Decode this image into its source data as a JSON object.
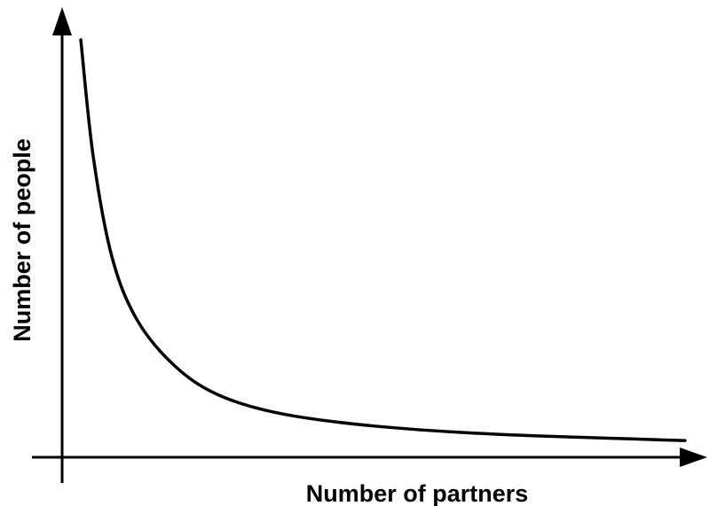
{
  "chart_data": {
    "type": "line",
    "title": "",
    "xlabel": "Number of partners",
    "ylabel": "Number of people",
    "grid": false,
    "legend": "none",
    "axis_ticks": false,
    "curve_shape": "power-law decay (long tail)",
    "series": [
      {
        "values": [
          [
            0.03,
            1.0
          ],
          [
            0.05,
            0.72
          ],
          [
            0.08,
            0.48
          ],
          [
            0.12,
            0.33
          ],
          [
            0.18,
            0.22
          ],
          [
            0.25,
            0.15
          ],
          [
            0.35,
            0.105
          ],
          [
            0.5,
            0.075
          ],
          [
            0.7,
            0.055
          ],
          [
            1.0,
            0.04
          ]
        ]
      }
    ],
    "xlim": [
      0,
      1
    ],
    "ylim": [
      0,
      1
    ],
    "colors": {
      "line": "#000000",
      "axes": "#000000",
      "background": "#ffffff"
    }
  }
}
